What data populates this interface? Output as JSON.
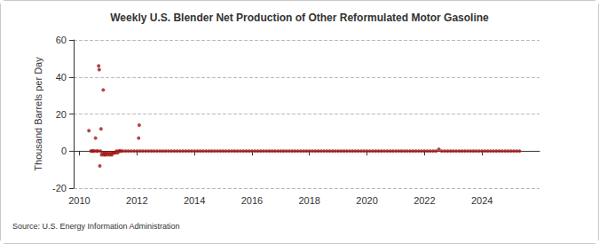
{
  "chart_data": {
    "type": "scatter",
    "title": "Weekly U.S. Blender Net Production of Other Reformulated Motor Gasoline",
    "y_label": "Thousand Barrels per Day",
    "source": "Source: U.S. Energy Information Administration",
    "color": "#a31515",
    "marker": "circle",
    "grid": true,
    "xlim": [
      2009.8,
      2026
    ],
    "xticks": [
      2010,
      2012,
      2014,
      2016,
      2018,
      2020,
      2022,
      2024
    ],
    "ylim": [
      -20,
      60
    ],
    "yticks": [
      -20,
      0,
      20,
      40,
      60
    ],
    "x": [
      2010.33,
      2010.4,
      2010.44,
      2010.48,
      2010.52,
      2010.56,
      2010.6,
      2010.64,
      2010.67,
      2010.69,
      2010.71,
      2010.73,
      2010.75,
      2010.77,
      2010.81,
      2010.83,
      2010.85,
      2010.88,
      2010.9,
      2010.94,
      2010.98,
      2011.02,
      2011.06,
      2011.1,
      2011.13,
      2011.17,
      2011.21,
      2011.25,
      2011.29,
      2011.33,
      2011.37,
      2011.4,
      2011.44,
      2011.5,
      2011.6,
      2011.7,
      2011.8,
      2011.9,
      2012.0,
      2012.06,
      2012.08,
      2012.1,
      2012.2,
      2012.3,
      2012.4,
      2012.5,
      2012.6,
      2012.7,
      2012.8,
      2012.9,
      2013.0,
      2013.1,
      2013.2,
      2013.3,
      2013.4,
      2013.5,
      2013.6,
      2013.7,
      2013.8,
      2013.9,
      2014.0,
      2014.1,
      2014.2,
      2014.3,
      2014.4,
      2014.5,
      2014.6,
      2014.7,
      2014.8,
      2014.9,
      2015.0,
      2015.1,
      2015.2,
      2015.3,
      2015.4,
      2015.5,
      2015.6,
      2015.7,
      2015.8,
      2015.9,
      2016.0,
      2016.1,
      2016.2,
      2016.3,
      2016.4,
      2016.5,
      2016.6,
      2016.7,
      2016.8,
      2016.9,
      2017.0,
      2017.1,
      2017.2,
      2017.3,
      2017.4,
      2017.5,
      2017.6,
      2017.7,
      2017.8,
      2017.9,
      2018.0,
      2018.1,
      2018.2,
      2018.3,
      2018.4,
      2018.5,
      2018.6,
      2018.7,
      2018.8,
      2018.9,
      2019.0,
      2019.1,
      2019.2,
      2019.3,
      2019.4,
      2019.5,
      2019.6,
      2019.7,
      2019.8,
      2019.9,
      2020.0,
      2020.1,
      2020.2,
      2020.3,
      2020.4,
      2020.5,
      2020.6,
      2020.7,
      2020.8,
      2020.9,
      2021.0,
      2021.1,
      2021.2,
      2021.3,
      2021.4,
      2021.5,
      2021.6,
      2021.7,
      2021.8,
      2021.9,
      2022.0,
      2022.1,
      2022.2,
      2022.3,
      2022.4,
      2022.5,
      2022.6,
      2022.7,
      2022.8,
      2022.9,
      2023.0,
      2023.1,
      2023.2,
      2023.3,
      2023.4,
      2023.5,
      2023.6,
      2023.7,
      2023.8,
      2023.9,
      2024.0,
      2024.1,
      2024.2,
      2024.3,
      2024.4,
      2024.5,
      2024.6,
      2024.7,
      2024.8,
      2024.9,
      2025.0,
      2025.1,
      2025.2,
      2025.3
    ],
    "values": [
      11,
      0,
      0,
      0,
      0,
      7,
      0,
      0,
      46,
      44,
      -8,
      0,
      12,
      -2,
      -1,
      33,
      -2,
      -1,
      -2,
      -1,
      -2,
      -1,
      -2,
      -1,
      -2,
      -1,
      -1,
      -1,
      0,
      -1,
      0,
      0,
      0,
      0,
      0,
      0,
      0,
      0,
      0,
      7,
      14,
      0,
      0,
      0,
      0,
      0,
      0,
      0,
      0,
      0,
      0,
      0,
      0,
      0,
      0,
      0,
      0,
      0,
      0,
      0,
      0,
      0,
      0,
      0,
      0,
      0,
      0,
      0,
      0,
      0,
      0,
      0,
      0,
      0,
      0,
      0,
      0,
      0,
      0,
      0,
      0,
      0,
      0,
      0,
      0,
      0,
      0,
      0,
      0,
      0,
      0,
      0,
      0,
      0,
      0,
      0,
      0,
      0,
      0,
      0,
      0,
      0,
      0,
      0,
      0,
      0,
      0,
      0,
      0,
      0,
      0,
      0,
      0,
      0,
      0,
      0,
      0,
      0,
      0,
      0,
      0,
      0,
      0,
      0,
      0,
      0,
      0,
      0,
      0,
      0,
      0,
      0,
      0,
      0,
      0,
      0,
      0,
      0,
      0,
      0,
      0,
      0,
      0,
      0,
      0,
      1,
      0,
      0,
      0,
      0,
      0,
      0,
      0,
      0,
      0,
      0,
      0,
      0,
      0,
      0,
      0,
      0,
      0,
      0,
      0,
      0,
      0,
      0,
      0,
      0,
      0,
      0,
      0,
      0
    ]
  }
}
